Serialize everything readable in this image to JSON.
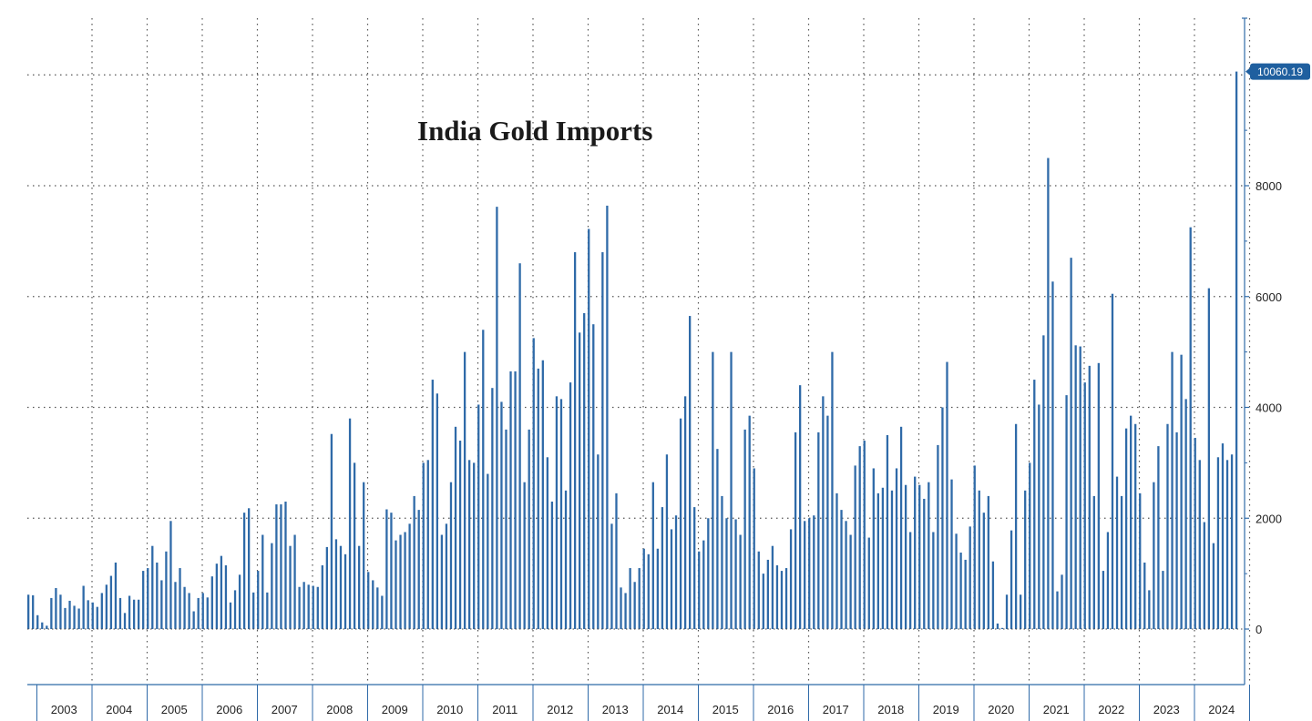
{
  "chart_data": {
    "type": "bar",
    "title": "India Gold Imports",
    "xlabel": "",
    "ylabel": "",
    "ylim": [
      -1000,
      11000
    ],
    "y_ticks": [
      0,
      2000,
      4000,
      6000,
      8000
    ],
    "y_tick_labels": [
      "0",
      "2000",
      "4000",
      "6000",
      "8000"
    ],
    "x_start": "2003-01",
    "x_tick_labels": [
      "2003",
      "2004",
      "2005",
      "2006",
      "2007",
      "2008",
      "2009",
      "2010",
      "2011",
      "2012",
      "2013",
      "2014",
      "2015",
      "2016",
      "2017",
      "2018",
      "2019",
      "2020",
      "2021",
      "2022",
      "2023",
      "2024"
    ],
    "grid": true,
    "legend": "none",
    "bar_color": "#2f6aa8",
    "last_value_label": "10060.19",
    "last_value_label_color": "#1f5f9f",
    "values": [
      620,
      610,
      250,
      120,
      60,
      560,
      740,
      620,
      380,
      510,
      420,
      370,
      780,
      520,
      480,
      400,
      650,
      800,
      960,
      1200,
      560,
      290,
      600,
      530,
      530,
      1050,
      1100,
      1500,
      1200,
      880,
      1400,
      1950,
      850,
      1100,
      760,
      650,
      320,
      560,
      650,
      570,
      950,
      1180,
      1320,
      1150,
      480,
      700,
      980,
      2100,
      2180,
      660,
      1050,
      1700,
      660,
      1550,
      2250,
      2250,
      2300,
      1500,
      1700,
      760,
      850,
      800,
      780,
      760,
      1150,
      1480,
      3520,
      1620,
      1500,
      1350,
      3800,
      3000,
      1500,
      2650,
      1030,
      880,
      750,
      600,
      2160,
      2100,
      1600,
      1700,
      1750,
      1900,
      2400,
      2150,
      3000,
      3050,
      4500,
      4250,
      1700,
      1900,
      2650,
      3650,
      3400,
      5000,
      3050,
      3000,
      4050,
      5400,
      2800,
      4350,
      7620,
      4100,
      3600,
      4650,
      4650,
      6600,
      2650,
      3600,
      5250,
      4700,
      4850,
      3100,
      2300,
      4200,
      4150,
      2500,
      4450,
      6800,
      5350,
      5700,
      7220,
      5500,
      3150,
      6800,
      7640,
      1900,
      2450,
      750,
      650,
      1100,
      850,
      1100,
      1450,
      1350,
      2650,
      1450,
      2200,
      3150,
      1800,
      2050,
      3800,
      4200,
      5650,
      2200,
      1400,
      1600,
      2000,
      5000,
      3250,
      2400,
      2000,
      5000,
      1980,
      1700,
      3600,
      3850,
      2900,
      1400,
      1000,
      1250,
      1500,
      1150,
      1050,
      1100,
      1800,
      3550,
      4400,
      1950,
      2000,
      2050,
      3550,
      4200,
      3850,
      5000,
      2450,
      2150,
      1950,
      1700,
      2950,
      3300,
      3400,
      1650,
      2900,
      2450,
      2550,
      3500,
      2500,
      2900,
      3650,
      2600,
      1750,
      2750,
      2600,
      2350,
      2650,
      1750,
      3320,
      4000,
      4820,
      2700,
      1720,
      1380,
      1250,
      1850,
      2950,
      2500,
      2100,
      2400,
      1220,
      100,
      20,
      620,
      1780,
      3700,
      620,
      2500,
      3000,
      4500,
      4050,
      5300,
      8500,
      6270,
      680,
      980,
      4220,
      6700,
      5120,
      5100,
      4450,
      4750,
      2400,
      4800,
      1050,
      1750,
      6050,
      2750,
      2400,
      3620,
      3850,
      3700,
      2450,
      1200,
      700,
      2650,
      3300,
      1050,
      3700,
      5000,
      3550,
      4950,
      4150,
      7250,
      3450,
      3050,
      1930,
      6150,
      1550,
      3100,
      3350,
      3050,
      3150,
      10060.19
    ]
  }
}
